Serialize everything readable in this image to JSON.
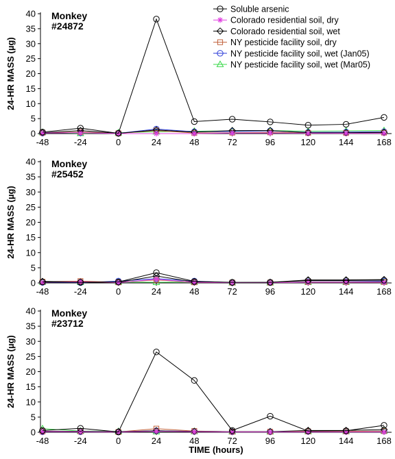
{
  "chart_data": [
    {
      "type": "line",
      "panel_label": [
        "Monkey",
        "#24872"
      ],
      "ylabel": "24-HR MASS (µg)",
      "xlabel": "",
      "x": [
        -48,
        -24,
        0,
        24,
        48,
        72,
        96,
        120,
        144,
        168
      ],
      "ylim": [
        0,
        40
      ],
      "yticks": [
        0,
        5,
        10,
        15,
        20,
        25,
        30,
        35,
        40
      ],
      "legend_position": "top-right",
      "series": [
        {
          "name": "Soluble arsenic",
          "color": "#000000",
          "marker": "circle",
          "values": [
            0.5,
            1.8,
            0.1,
            38.2,
            4.0,
            4.8,
            3.9,
            2.8,
            3.1,
            5.4
          ]
        },
        {
          "name": "Colorado residential soil, dry",
          "color": "#e040e0",
          "marker": "star",
          "values": [
            0.2,
            0.3,
            0.0,
            0.0,
            0.0,
            0.2,
            0.2,
            0.1,
            0.1,
            0.1
          ]
        },
        {
          "name": "Colorado residential soil, wet",
          "color": "#000000",
          "marker": "diamond",
          "values": [
            0.3,
            1.0,
            0.1,
            1.2,
            0.5,
            1.0,
            1.0,
            0.3,
            0.3,
            0.4
          ]
        },
        {
          "name": "NY pesticide facility soil, dry",
          "color": "#c0603a",
          "marker": "square",
          "values": [
            0.3,
            0.5,
            0.1,
            1.0,
            0.2,
            0.3,
            0.4,
            0.2,
            0.2,
            0.3
          ]
        },
        {
          "name": "NY pesticide facility soil, wet (Jan05)",
          "color": "#2a3ad8",
          "marker": "circle",
          "values": [
            0.2,
            0.3,
            0.1,
            1.5,
            0.6,
            0.7,
            0.9,
            0.4,
            0.5,
            0.6
          ]
        },
        {
          "name": "NY pesticide facility soil, wet (Mar05)",
          "color": "#3ad84a",
          "marker": "triangle",
          "values": [
            0.4,
            0.1,
            0.3,
            0.6,
            0.8,
            0.9,
            1.0,
            0.8,
            0.9,
            1.0
          ]
        }
      ]
    },
    {
      "type": "line",
      "panel_label": [
        "Monkey",
        "#25452"
      ],
      "ylabel": "24-HR MASS (µg)",
      "xlabel": "",
      "x": [
        -48,
        -24,
        0,
        24,
        48,
        72,
        96,
        120,
        144,
        168
      ],
      "ylim": [
        0,
        40
      ],
      "yticks": [
        0,
        5,
        10,
        15,
        20,
        25,
        30,
        35,
        40
      ],
      "series": [
        {
          "name": "Soluble arsenic",
          "color": "#000000",
          "marker": "circle",
          "values": [
            0.3,
            0.2,
            0.3,
            3.4,
            0.5,
            0.2,
            0.2,
            0.8,
            0.8,
            0.9
          ]
        },
        {
          "name": "Colorado residential soil, dry",
          "color": "#e040e0",
          "marker": "star",
          "values": [
            0.2,
            0.4,
            0.1,
            1.2,
            0.2,
            0.1,
            0.1,
            0.2,
            0.2,
            0.2
          ]
        },
        {
          "name": "Colorado residential soil, wet",
          "color": "#000000",
          "marker": "diamond",
          "values": [
            0.5,
            0.3,
            0.2,
            2.3,
            0.3,
            0.1,
            0.2,
            1.0,
            1.0,
            1.1
          ]
        },
        {
          "name": "NY pesticide facility soil, dry",
          "color": "#c0603a",
          "marker": "square",
          "values": [
            0.4,
            0.6,
            0.2,
            1.0,
            0.2,
            0.1,
            0.1,
            0.3,
            0.3,
            0.3
          ]
        },
        {
          "name": "NY pesticide facility soil, wet (Jan05)",
          "color": "#2a3ad8",
          "marker": "circle",
          "values": [
            0.2,
            0.1,
            0.6,
            1.4,
            0.6,
            0.1,
            0.1,
            0.4,
            0.4,
            0.6
          ]
        },
        {
          "name": "NY pesticide facility soil, wet (Mar05)",
          "color": "#3ad84a",
          "marker": "triangle",
          "values": [
            0.3,
            0.2,
            0.3,
            0.2,
            0.3,
            0.1,
            0.1,
            0.2,
            0.2,
            0.3
          ]
        }
      ]
    },
    {
      "type": "line",
      "panel_label": [
        "Monkey",
        "#23712"
      ],
      "ylabel": "24-HR MASS (µg)",
      "xlabel": "TIME (hours)",
      "x": [
        -48,
        -24,
        0,
        24,
        48,
        72,
        96,
        120,
        144,
        168
      ],
      "ylim": [
        0,
        40
      ],
      "yticks": [
        0,
        5,
        10,
        15,
        20,
        25,
        30,
        35,
        40
      ],
      "series": [
        {
          "name": "Soluble arsenic",
          "color": "#000000",
          "marker": "circle",
          "values": [
            0.6,
            1.3,
            0.1,
            26.5,
            17.1,
            0.6,
            5.3,
            0.4,
            0.5,
            2.3
          ]
        },
        {
          "name": "Colorado residential soil, dry",
          "color": "#e040e0",
          "marker": "star",
          "values": [
            0.2,
            0.2,
            0.1,
            0.3,
            0.2,
            0.1,
            0.1,
            0.1,
            0.1,
            0.1
          ]
        },
        {
          "name": "Colorado residential soil, wet",
          "color": "#000000",
          "marker": "diamond",
          "values": [
            0.3,
            0.3,
            0.2,
            0.5,
            0.3,
            0.2,
            0.2,
            0.6,
            0.6,
            0.9
          ]
        },
        {
          "name": "NY pesticide facility soil, dry",
          "color": "#c0603a",
          "marker": "square",
          "values": [
            0.3,
            0.3,
            0.1,
            1.2,
            0.4,
            0.2,
            0.2,
            0.3,
            0.3,
            0.4
          ]
        },
        {
          "name": "NY pesticide facility soil, wet (Jan05)",
          "color": "#2a3ad8",
          "marker": "circle",
          "values": [
            0.2,
            0.2,
            0.1,
            0.5,
            0.3,
            0.2,
            0.2,
            0.3,
            0.3,
            0.4
          ]
        },
        {
          "name": "NY pesticide facility soil, wet (Mar05)",
          "color": "#3ad84a",
          "marker": "triangle",
          "values": [
            1.2,
            0.4,
            0.3,
            0.2,
            0.3,
            0.2,
            0.2,
            0.3,
            0.3,
            0.4
          ]
        }
      ]
    }
  ]
}
